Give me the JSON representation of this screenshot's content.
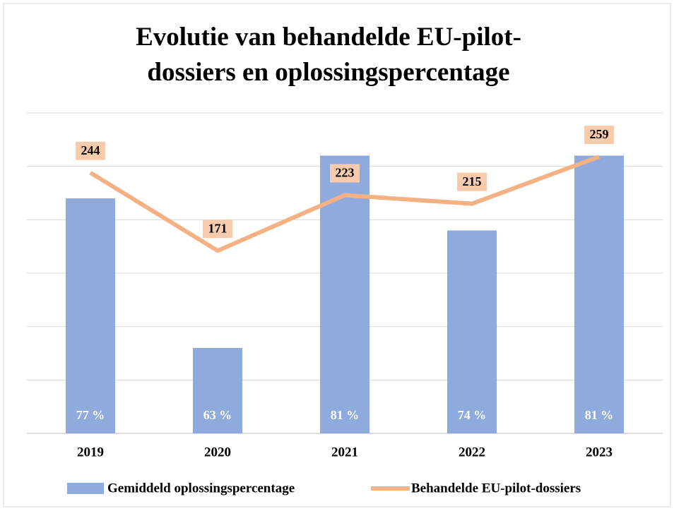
{
  "chart_data": {
    "type": "bar+line",
    "title": "Evolutie van behandelde EU-pilot-dossiers en oplossingspercentage",
    "categories": [
      "2019",
      "2020",
      "2021",
      "2022",
      "2023"
    ],
    "series": [
      {
        "name": "Gemiddeld oplossingspercentage",
        "type": "bar",
        "color": "#8faadc",
        "values": [
          77,
          63,
          81,
          74,
          81
        ],
        "value_labels": [
          "77 %",
          "63 %",
          "81 %",
          "74 %",
          "81 %"
        ]
      },
      {
        "name": "Behandelde EU-pilot-dossiers",
        "type": "line",
        "axis": "y2",
        "color": "#f4b183",
        "values": [
          244,
          171,
          223,
          215,
          259
        ]
      }
    ],
    "ylim": [
      55,
      85
    ],
    "yticks": [
      55,
      60,
      65,
      70,
      75,
      80,
      85
    ],
    "y2lim": [
      0,
      300
    ],
    "grid": true,
    "legend": "bottom"
  }
}
